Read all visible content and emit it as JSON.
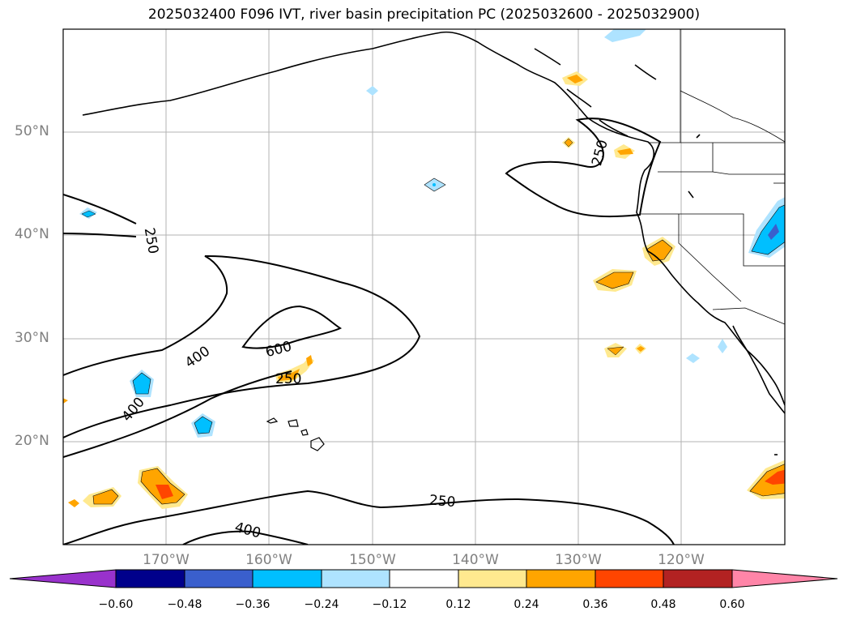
{
  "title": "2025032400 F096 IVT, river basin precipitation PC (2025032600 - 2025032900)",
  "map": {
    "lat_labels": [
      "50°N",
      "40°N",
      "30°N",
      "20°N"
    ],
    "lon_labels": [
      "170°W",
      "160°W",
      "150°W",
      "140°W",
      "130°W",
      "120°W"
    ],
    "contour_labels": [
      "250",
      "250",
      "400",
      "600",
      "250",
      "400",
      "250",
      "400"
    ],
    "contour_levels": [
      250,
      400,
      600
    ]
  },
  "colorbar": {
    "ticks": [
      "−0.60",
      "−0.48",
      "−0.36",
      "−0.24",
      "−0.12",
      "0.12",
      "0.24",
      "0.36",
      "0.48",
      "0.60"
    ],
    "colors": [
      "#9932cc",
      "#00008b",
      "#3a5fcd",
      "#00bfff",
      "#aee3ff",
      "#ffffff",
      "#ffe98f",
      "#ffa500",
      "#ff4500",
      "#b22222",
      "#ff85a8"
    ]
  }
}
